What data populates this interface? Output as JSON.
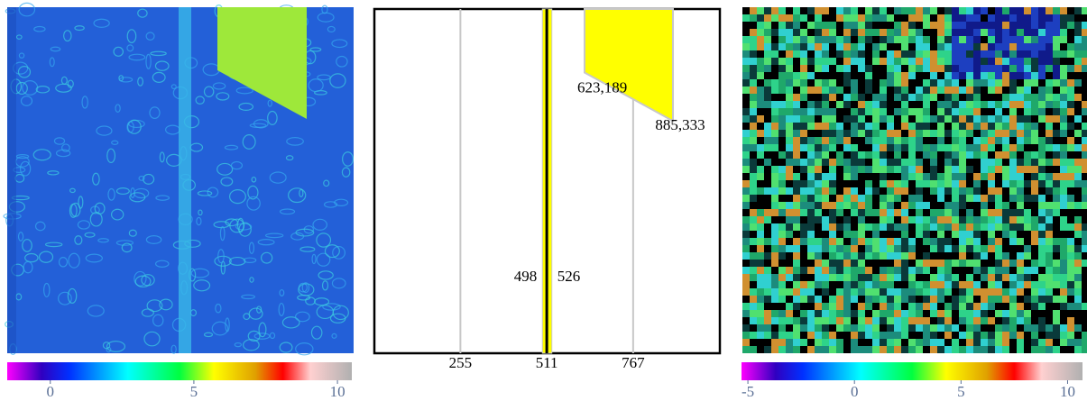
{
  "left_panel": {
    "colorbar": {
      "clim": [
        -1.5,
        10.5
      ],
      "ticks": [
        0,
        5,
        10
      ]
    }
  },
  "middle_panel": {
    "xlim": [
      0,
      1024
    ],
    "ylim": [
      0,
      1024
    ],
    "xticks": [
      255,
      511,
      767
    ],
    "band": {
      "left": 498,
      "right": 526
    },
    "points": [
      {
        "x": 623,
        "y": 189,
        "label": "623,189"
      },
      {
        "x": 885,
        "y": 333,
        "label": "885,333"
      }
    ]
  },
  "right_panel": {
    "colorbar": {
      "clim": [
        -5.3,
        10.7
      ],
      "ticks": [
        -5,
        0,
        5,
        10
      ]
    }
  }
}
